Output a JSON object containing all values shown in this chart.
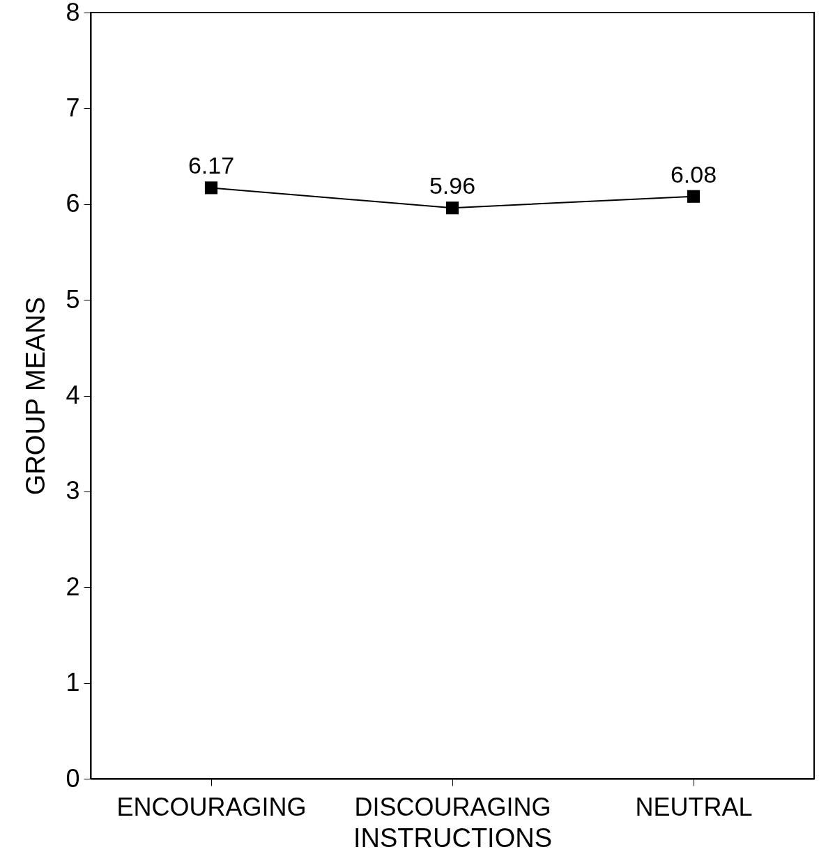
{
  "chart_data": {
    "type": "line",
    "xlabel": "INSTRUCTIONS",
    "ylabel": "GROUP MEANS",
    "categories": [
      "ENCOURAGING",
      "DISCOURAGING",
      "NEUTRAL"
    ],
    "series": [
      {
        "color": "#000000",
        "values": [
          6.17,
          5.96,
          6.08
        ]
      }
    ],
    "ylim": [
      0,
      8
    ],
    "yticks": [
      0,
      1,
      2,
      3,
      4,
      5,
      6,
      7,
      8
    ],
    "grid": false,
    "marker": "square",
    "line_style": "solid",
    "data_labels": true
  }
}
